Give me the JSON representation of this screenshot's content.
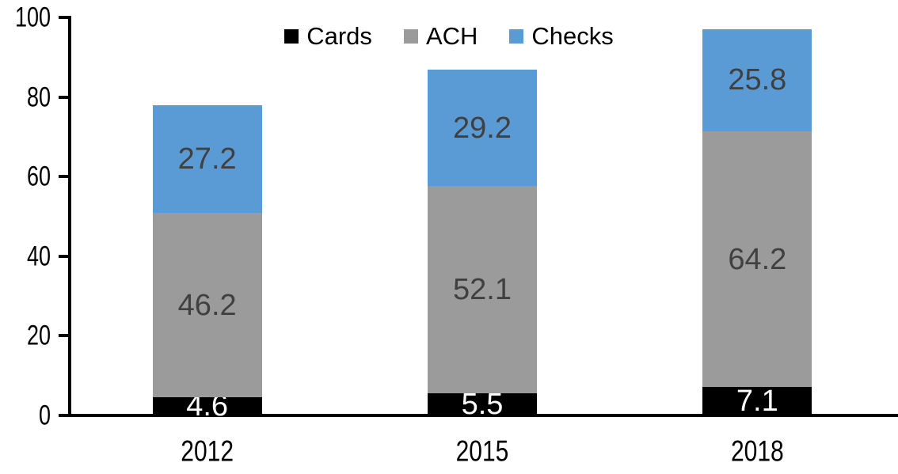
{
  "chart_data": {
    "type": "bar",
    "stacked": true,
    "title": "",
    "categories": [
      "2012",
      "2015",
      "2018"
    ],
    "series": [
      {
        "name": "Cards",
        "color": "#000000",
        "label_color": "#ffffff",
        "values": [
          4.6,
          5.5,
          7.1
        ]
      },
      {
        "name": "ACH",
        "color": "#9B9B9B",
        "label_color": "#404040",
        "values": [
          46.2,
          52.1,
          64.2
        ]
      },
      {
        "name": "Checks",
        "color": "#5B9BD5",
        "label_color": "#404040",
        "values": [
          27.2,
          29.2,
          25.8
        ]
      }
    ],
    "data_label_format": "one-decimal",
    "y_ticks": [
      0,
      20,
      40,
      60,
      80,
      100
    ],
    "ylim": [
      0,
      100
    ],
    "xlabel": "",
    "ylabel": "",
    "grid": false,
    "legend_position": "top-center",
    "axis_color": "#000000",
    "background_color": "#ffffff"
  }
}
